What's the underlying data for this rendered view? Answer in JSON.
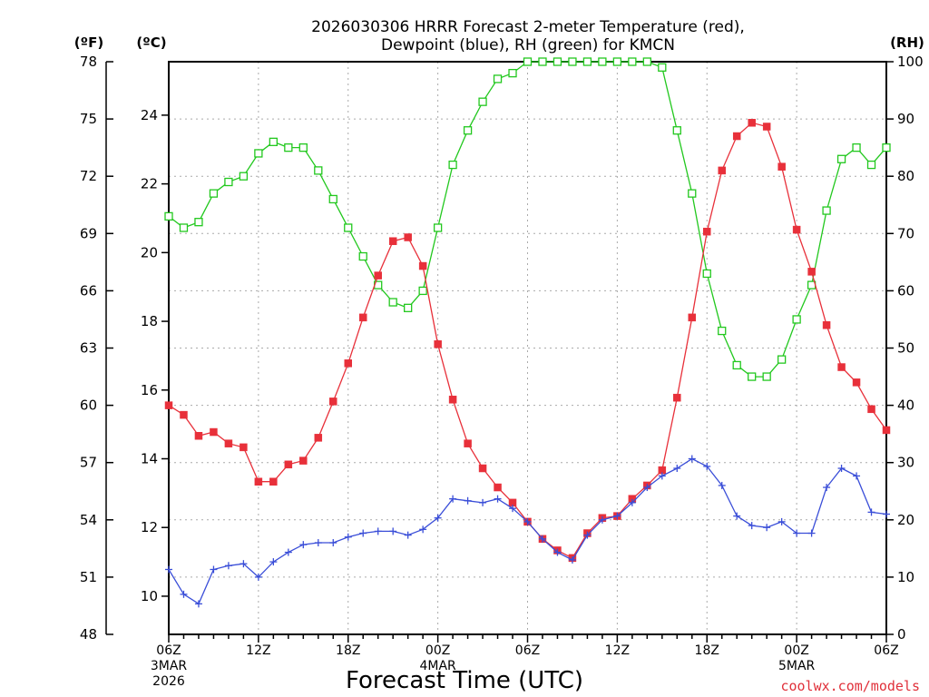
{
  "chart_data": {
    "type": "line",
    "title_line1": "2026030306 HRRR Forecast 2-meter Temperature (red),",
    "title_line2": "Dewpoint (blue), RH (green) for KMCN",
    "xlabel": "Forecast Time (UTC)",
    "credit": "coolwx.com/models",
    "y_left_outer": {
      "unit_label": "(ºF)",
      "ticks": [
        "78",
        "75",
        "72",
        "69",
        "66",
        "63",
        "60",
        "57",
        "54",
        "51",
        "48"
      ],
      "range": [
        48,
        78
      ]
    },
    "y_left_inner": {
      "unit_label": "(ºC)",
      "ticks": [
        "24",
        "22",
        "20",
        "18",
        "16",
        "14",
        "12",
        "10"
      ],
      "range_f": [
        48,
        78
      ]
    },
    "y_right": {
      "unit_label": "(RH)",
      "ticks": [
        "100",
        "90",
        "80",
        "70",
        "60",
        "50",
        "40",
        "30",
        "20",
        "10",
        "0"
      ],
      "range": [
        0,
        100
      ]
    },
    "x_ticks": [
      {
        "hour": 0,
        "label": "06Z",
        "sub1": "3MAR",
        "sub2": "2026"
      },
      {
        "hour": 6,
        "label": "12Z",
        "sub1": "",
        "sub2": ""
      },
      {
        "hour": 12,
        "label": "18Z",
        "sub1": "",
        "sub2": ""
      },
      {
        "hour": 18,
        "label": "00Z",
        "sub1": "4MAR",
        "sub2": ""
      },
      {
        "hour": 24,
        "label": "06Z",
        "sub1": "",
        "sub2": ""
      },
      {
        "hour": 30,
        "label": "12Z",
        "sub1": "",
        "sub2": ""
      },
      {
        "hour": 36,
        "label": "18Z",
        "sub1": "",
        "sub2": ""
      },
      {
        "hour": 42,
        "label": "00Z",
        "sub1": "5MAR",
        "sub2": ""
      },
      {
        "hour": 48,
        "label": "06Z",
        "sub1": "",
        "sub2": ""
      }
    ],
    "x_range_hours": [
      0,
      48
    ],
    "series": [
      {
        "name": "2-meter Temperature",
        "unit": "F",
        "color": "#e8303a",
        "marker": "filled-square",
        "values": [
          60.0,
          59.5,
          58.4,
          58.6,
          58.0,
          57.8,
          56.0,
          56.0,
          56.9,
          57.1,
          58.3,
          60.2,
          62.2,
          64.6,
          66.8,
          68.6,
          68.8,
          67.3,
          63.2,
          60.3,
          58.0,
          56.7,
          55.7,
          54.9,
          53.9,
          53.0,
          52.4,
          52.0,
          53.3,
          54.1,
          54.2,
          55.1,
          55.8,
          56.6,
          60.4,
          64.6,
          69.1,
          72.3,
          74.1,
          74.8,
          74.6,
          72.5,
          69.2,
          67.0,
          64.2,
          62.0,
          61.2,
          59.8,
          58.7
        ]
      },
      {
        "name": "Dewpoint",
        "unit": "F",
        "color": "#3a4ed8",
        "marker": "plus",
        "values": [
          51.4,
          50.1,
          49.6,
          51.4,
          51.6,
          51.7,
          51.0,
          51.8,
          52.3,
          52.7,
          52.8,
          52.8,
          53.1,
          53.3,
          53.4,
          53.4,
          53.2,
          53.5,
          54.1,
          55.1,
          55.0,
          54.9,
          55.1,
          54.6,
          53.9,
          53.0,
          52.3,
          51.9,
          53.2,
          54.0,
          54.2,
          54.9,
          55.7,
          56.3,
          56.7,
          57.2,
          56.8,
          55.8,
          54.2,
          53.7,
          53.6,
          53.9,
          53.3,
          53.3,
          55.7,
          56.7,
          56.3,
          54.4,
          54.3
        ]
      },
      {
        "name": "RH",
        "unit": "%",
        "color": "#22c81e",
        "marker": "open-square",
        "values": [
          73,
          71,
          72,
          77,
          79,
          80,
          84,
          86,
          85,
          85,
          81,
          76,
          71,
          66,
          61,
          58,
          57,
          60,
          71,
          82,
          88,
          93,
          97,
          98,
          100,
          100,
          100,
          100,
          100,
          100,
          100,
          100,
          100,
          99,
          88,
          77,
          63,
          53,
          47,
          45,
          45,
          48,
          55,
          61,
          74,
          83,
          85,
          82,
          85
        ]
      }
    ]
  }
}
